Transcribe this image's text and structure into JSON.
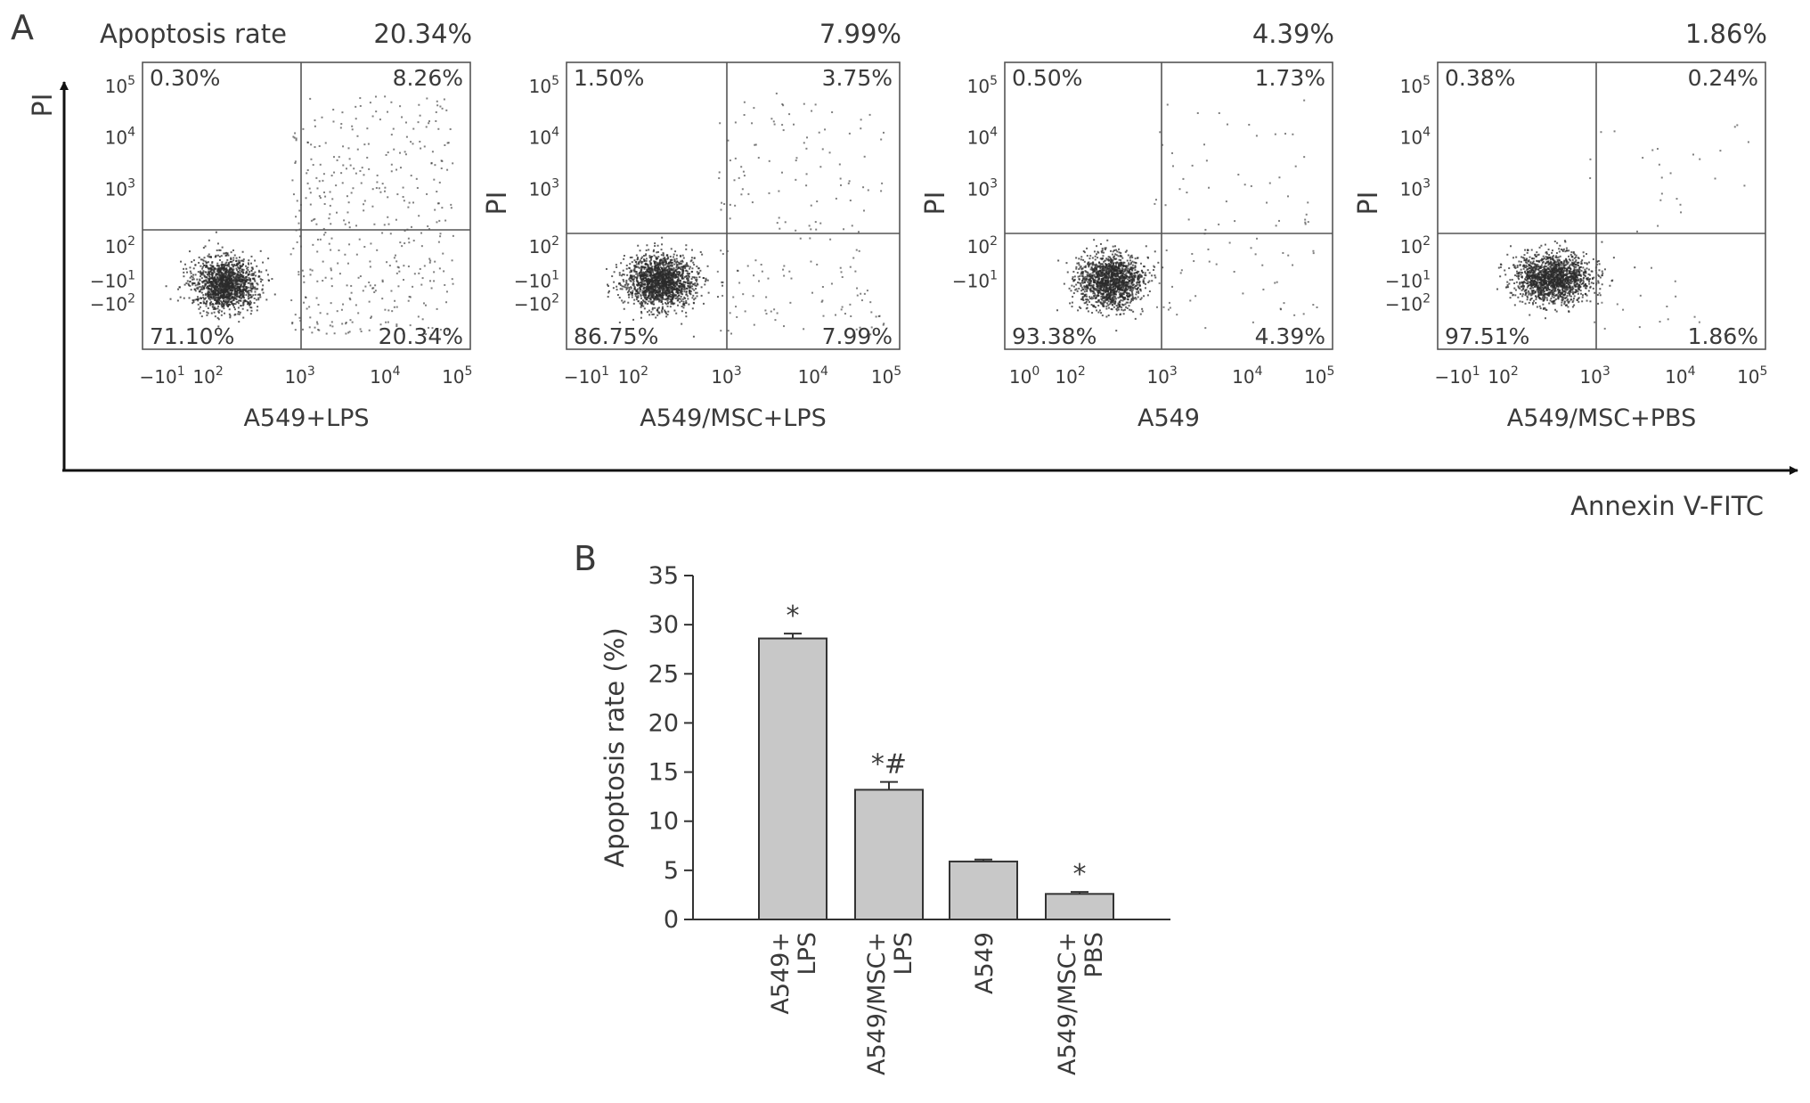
{
  "figure": {
    "panel_a_letter": "A",
    "panel_b_letter": "B",
    "y_axis_label": "PI",
    "x_axis_label": "Annexin V-FITC",
    "apoptosis_rate_label": "Apoptosis rate"
  },
  "colors": {
    "ink": "#333333",
    "dots": "#2b2b2b",
    "bar_fill": "#c8c8c8",
    "frame": "#555555"
  },
  "flow_panels": [
    {
      "sample": "A549+LPS",
      "rate": "20.34%",
      "show_pi": false,
      "q_ul": "0.30%",
      "q_ur": "8.26%",
      "q_ll": "71.10%",
      "q_lr": "20.34%",
      "x_ticks": [
        {
          "b": "−10",
          "e": "1"
        },
        {
          "b": "10",
          "e": "2"
        },
        {
          "b": "10",
          "e": "3"
        },
        {
          "b": "10",
          "e": "4"
        },
        {
          "b": "10",
          "e": "5"
        }
      ],
      "y_ticks": [
        {
          "b": "10",
          "e": "5"
        },
        {
          "b": "10",
          "e": "4"
        },
        {
          "b": "10",
          "e": "3"
        },
        {
          "b": "10",
          "e": "2"
        },
        {
          "b": "−10",
          "e": "1"
        },
        {
          "b": "−10",
          "e": "2"
        }
      ]
    },
    {
      "sample": "A549/MSC+LPS",
      "rate": "7.99%",
      "show_pi": true,
      "q_ul": "1.50%",
      "q_ur": "3.75%",
      "q_ll": "86.75%",
      "q_lr": "7.99%",
      "x_ticks": [
        {
          "b": "−10",
          "e": "1"
        },
        {
          "b": "10",
          "e": "2"
        },
        {
          "b": "10",
          "e": "3"
        },
        {
          "b": "10",
          "e": "4"
        },
        {
          "b": "10",
          "e": "5"
        }
      ],
      "y_ticks": [
        {
          "b": "10",
          "e": "5"
        },
        {
          "b": "10",
          "e": "4"
        },
        {
          "b": "10",
          "e": "3"
        },
        {
          "b": "10",
          "e": "2"
        },
        {
          "b": "−10",
          "e": "1"
        },
        {
          "b": "−10",
          "e": "2"
        }
      ]
    },
    {
      "sample": "A549",
      "rate": "4.39%",
      "show_pi": true,
      "q_ul": "0.50%",
      "q_ur": "1.73%",
      "q_ll": "93.38%",
      "q_lr": "4.39%",
      "x_ticks": [
        {
          "b": "10",
          "e": "0"
        },
        {
          "b": "10",
          "e": "2"
        },
        {
          "b": "10",
          "e": "3"
        },
        {
          "b": "10",
          "e": "4"
        },
        {
          "b": "10",
          "e": "5"
        }
      ],
      "y_ticks": [
        {
          "b": "10",
          "e": "5"
        },
        {
          "b": "10",
          "e": "4"
        },
        {
          "b": "10",
          "e": "3"
        },
        {
          "b": "10",
          "e": "2"
        },
        {
          "b": "−10",
          "e": "1"
        }
      ]
    },
    {
      "sample": "A549/MSC+PBS",
      "rate": "1.86%",
      "show_pi": true,
      "q_ul": "0.38%",
      "q_ur": "0.24%",
      "q_ll": "97.51%",
      "q_lr": "1.86%",
      "x_ticks": [
        {
          "b": "−10",
          "e": "1"
        },
        {
          "b": "10",
          "e": "2"
        },
        {
          "b": "10",
          "e": "3"
        },
        {
          "b": "10",
          "e": "4"
        },
        {
          "b": "10",
          "e": "5"
        }
      ],
      "y_ticks": [
        {
          "b": "10",
          "e": "5"
        },
        {
          "b": "10",
          "e": "4"
        },
        {
          "b": "10",
          "e": "3"
        },
        {
          "b": "10",
          "e": "2"
        },
        {
          "b": "−10",
          "e": "1"
        },
        {
          "b": "−10",
          "e": "2"
        }
      ]
    }
  ],
  "chart_data": {
    "type": "bar",
    "ylabel": "Apoptosis rate (%)",
    "ylim": [
      0,
      35
    ],
    "yticks": [
      0,
      5,
      10,
      15,
      20,
      25,
      30,
      35
    ],
    "categories": [
      [
        "A549+",
        "LPS"
      ],
      [
        "A549/MSC+",
        "LPS"
      ],
      [
        "A549"
      ],
      [
        "A549/MSC+",
        "PBS"
      ]
    ],
    "values": [
      28.6,
      13.2,
      5.9,
      2.6
    ],
    "errors": [
      0.5,
      0.8,
      0.2,
      0.2
    ],
    "significance": [
      "*",
      "*#",
      "",
      "*"
    ]
  }
}
